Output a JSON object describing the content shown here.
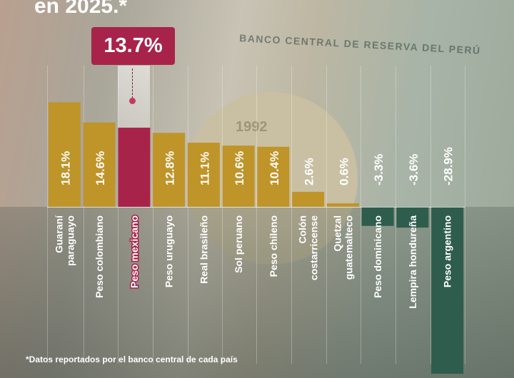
{
  "title": "en 2025.*",
  "featured": {
    "label": "Peso mexicano",
    "value_text": "13.7%"
  },
  "footnote": "*Datos reportados por el banco central  de cada país",
  "background_text": {
    "bank": "BANCO CENTRAL DE RESERVA DEL PERÚ",
    "coin_year": "1992"
  },
  "colors": {
    "positive": "#bf9428",
    "negative": "#2e5d4d",
    "featured": "#a8234a",
    "text": "#ffffff"
  },
  "chart_data": {
    "type": "bar",
    "title": "en 2025.*",
    "categories": [
      "Guaraní paraguayo",
      "Peso colombiano",
      "Peso mexicano",
      "Peso uruguayo",
      "Real brasileño",
      "Sol peruano",
      "Peso chileno",
      "Colón costarricense",
      "Quetzal guatemalteco",
      "Peso dominicano",
      "Lempira hondureña",
      "Peso argentino"
    ],
    "values": [
      18.1,
      14.6,
      13.7,
      12.8,
      11.1,
      10.6,
      10.4,
      2.6,
      0.6,
      -3.3,
      -3.6,
      -28.9
    ],
    "value_labels": [
      "18.1%",
      "14.6%",
      "",
      "12.8%",
      "11.1%",
      "10.6%",
      "10.4%",
      "2.6%",
      "0.6%",
      "-3.3%",
      "-3.6%",
      "-28.9%"
    ],
    "category_lines": [
      [
        "Guaraní",
        "paraguayo"
      ],
      [
        "Peso colombiano"
      ],
      [
        "Peso mexicano"
      ],
      [
        "Peso uruguayo"
      ],
      [
        "Real brasileño"
      ],
      [
        "Sol peruano"
      ],
      [
        "Peso chileno"
      ],
      [
        "Colón",
        "costarricense"
      ],
      [
        "Quetzal",
        "guatemalteco"
      ],
      [
        "Peso dominicano"
      ],
      [
        "Lempira hondureña"
      ],
      [
        "Peso argentino"
      ]
    ],
    "highlight_index": 2,
    "xlabel": "",
    "ylabel": "",
    "grid": true
  }
}
